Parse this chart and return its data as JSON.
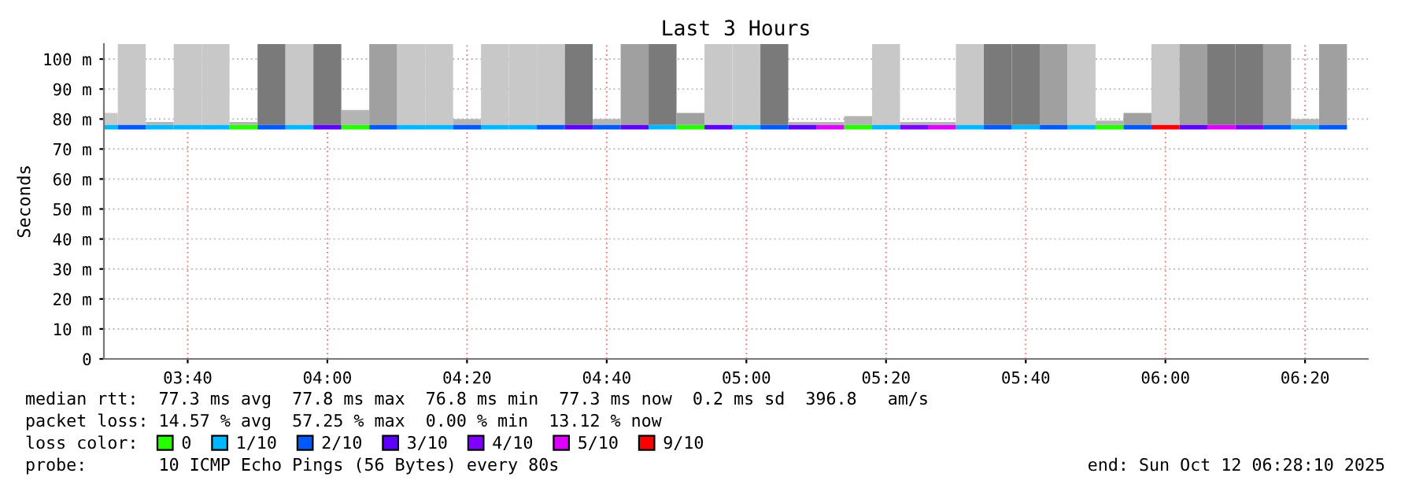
{
  "chart_data": {
    "type": "bar",
    "title": "Last 3 Hours",
    "ylabel": "Seconds",
    "legend_title": "loss color:",
    "xlim": [
      3.4667,
      6.4833
    ],
    "xticks": [
      {
        "value": 3.6667,
        "label": "03:40"
      },
      {
        "value": 4,
        "label": "04:00"
      },
      {
        "value": 4.3333,
        "label": "04:20"
      },
      {
        "value": 4.6667,
        "label": "04:40"
      },
      {
        "value": 5,
        "label": "05:00"
      },
      {
        "value": 5.3333,
        "label": "05:20"
      },
      {
        "value": 5.6667,
        "label": "05:40"
      },
      {
        "value": 6,
        "label": "06:00"
      },
      {
        "value": 6.3333,
        "label": "06:20"
      }
    ],
    "ylim": [
      0,
      105
    ],
    "yticks": [
      0,
      {
        "value": 10,
        "label": "10 m"
      },
      {
        "value": 20,
        "label": "20 m"
      },
      {
        "value": 30,
        "label": "30 m"
      },
      {
        "value": 40,
        "label": "40 m"
      },
      {
        "value": 50,
        "label": "50 m"
      },
      {
        "value": 60,
        "label": "60 m"
      },
      {
        "value": 70,
        "label": "70 m"
      },
      {
        "value": 80,
        "label": "80 m"
      },
      {
        "value": 90,
        "label": "90 m"
      },
      {
        "value": 100,
        "label": "100 m"
      }
    ],
    "grid": true,
    "legend": "bottom",
    "x": [
      3.4667,
      3.5333,
      3.6,
      3.6667,
      3.7333,
      3.8,
      3.8667,
      3.9333,
      4.0,
      4.0667,
      4.1333,
      4.2,
      4.2667,
      4.3333,
      4.4,
      4.4667,
      4.5333,
      4.6,
      4.6667,
      4.7333,
      4.8,
      4.8667,
      4.9333,
      5.0,
      5.0667,
      5.1333,
      5.2,
      5.2667,
      5.3333,
      5.4,
      5.4667,
      5.5333,
      5.6,
      5.6667,
      5.7333,
      5.8,
      5.8667,
      5.9333,
      6.0,
      6.0667,
      6.1333,
      6.2,
      6.2667,
      6.3333,
      6.4
    ],
    "base": [
      78,
      78,
      78,
      78,
      78,
      78,
      78,
      78,
      78,
      78,
      78,
      78,
      78,
      78,
      78,
      78,
      78,
      78,
      78,
      78,
      78,
      78,
      78,
      78,
      78,
      78,
      78,
      78,
      78,
      78,
      78,
      78,
      78,
      78,
      78,
      78,
      78,
      78,
      78,
      78,
      78,
      78,
      78,
      78,
      78
    ],
    "values": [
      4,
      27,
      1,
      27,
      27,
      1,
      27,
      27,
      27,
      5,
      27,
      27,
      27,
      2,
      27,
      27,
      27,
      27,
      2,
      27,
      27,
      4,
      27,
      27,
      27,
      1,
      1,
      3,
      27,
      1,
      1,
      27,
      27,
      27,
      27,
      27,
      1.5,
      4,
      27,
      27,
      27,
      27,
      27,
      2,
      27
    ],
    "colors": [
      "#c8c8c8",
      "#c8c8c8",
      "#b4b4b4",
      "#c8c8c8",
      "#c8c8c8",
      "#b4b4b4",
      "#7a7a7a",
      "#c8c8c8",
      "#7a7a7a",
      "#b4b4b4",
      "#a0a0a0",
      "#c8c8c8",
      "#c8c8c8",
      "#b4b4b4",
      "#c8c8c8",
      "#c8c8c8",
      "#c8c8c8",
      "#7a7a7a",
      "#b4b4b4",
      "#a0a0a0",
      "#7a7a7a",
      "#a0a0a0",
      "#c8c8c8",
      "#c8c8c8",
      "#7a7a7a",
      "#b4b4b4",
      "#b4b4b4",
      "#b4b4b4",
      "#c8c8c8",
      "#b4b4b4",
      "#b4b4b4",
      "#c8c8c8",
      "#7a7a7a",
      "#7a7a7a",
      "#a0a0a0",
      "#c8c8c8",
      "#b4b4b4",
      "#a0a0a0",
      "#c8c8c8",
      "#a0a0a0",
      "#7a7a7a",
      "#7a7a7a",
      "#a0a0a0",
      "#b4b4b4",
      "#a0a0a0"
    ],
    "series": [
      {
        "type": "bar",
        "name": "0",
        "color": "#26ff00",
        "values": [
          null,
          null,
          null,
          null,
          null,
          1.5,
          null,
          null,
          null,
          1.5,
          null,
          null,
          null,
          null,
          null,
          null,
          null,
          null,
          null,
          null,
          null,
          1.5,
          null,
          null,
          null,
          null,
          null,
          1.5,
          null,
          null,
          null,
          null,
          null,
          null,
          null,
          null,
          1.5,
          null,
          null,
          null,
          null,
          null,
          null,
          null,
          null
        ],
        "base": [
          null,
          null,
          null,
          null,
          null,
          76.5,
          null,
          null,
          null,
          76.5,
          null,
          null,
          null,
          null,
          null,
          null,
          null,
          null,
          null,
          null,
          null,
          76.5,
          null,
          null,
          null,
          null,
          null,
          76.5,
          null,
          null,
          null,
          null,
          null,
          null,
          null,
          null,
          76.5,
          null,
          null,
          null,
          null,
          null,
          null,
          null,
          null
        ]
      },
      {
        "type": "bar",
        "name": "1/10",
        "color": "#00b8ff",
        "values": [
          1.5,
          null,
          1.5,
          1.5,
          1.5,
          null,
          null,
          1.5,
          null,
          null,
          null,
          1.5,
          1.5,
          null,
          1.5,
          1.5,
          null,
          null,
          null,
          null,
          1.5,
          null,
          null,
          1.5,
          null,
          null,
          null,
          null,
          1.5,
          null,
          null,
          1.5,
          null,
          1.5,
          null,
          1.5,
          null,
          null,
          null,
          null,
          null,
          null,
          null,
          1.5,
          null
        ],
        "base": [
          76.5,
          null,
          76.5,
          76.5,
          76.5,
          null,
          null,
          76.5,
          null,
          null,
          null,
          76.5,
          76.5,
          null,
          76.5,
          76.5,
          null,
          null,
          null,
          null,
          76.5,
          null,
          null,
          76.5,
          null,
          null,
          null,
          null,
          76.5,
          null,
          null,
          76.5,
          null,
          76.5,
          null,
          76.5,
          null,
          null,
          null,
          null,
          null,
          null,
          null,
          76.5,
          null
        ]
      },
      {
        "type": "bar",
        "name": "2/10",
        "color": "#0059ff",
        "values": [
          null,
          1.5,
          null,
          null,
          null,
          null,
          1.5,
          null,
          null,
          null,
          1.5,
          null,
          null,
          1.5,
          null,
          null,
          1.5,
          null,
          1.5,
          null,
          null,
          null,
          null,
          null,
          1.5,
          null,
          null,
          null,
          null,
          null,
          null,
          null,
          1.5,
          null,
          1.5,
          null,
          null,
          1.5,
          null,
          null,
          null,
          null,
          1.5,
          null,
          1.5
        ],
        "base": [
          null,
          76.5,
          null,
          null,
          null,
          null,
          76.5,
          null,
          null,
          null,
          76.5,
          null,
          null,
          76.5,
          null,
          null,
          76.5,
          null,
          76.5,
          null,
          null,
          null,
          null,
          null,
          76.5,
          null,
          null,
          null,
          null,
          null,
          null,
          null,
          76.5,
          null,
          76.5,
          null,
          null,
          76.5,
          null,
          null,
          null,
          null,
          76.5,
          null,
          76.5
        ]
      },
      {
        "type": "bar",
        "name": "3/10",
        "color": "#5e00ff",
        "values": [
          null,
          null,
          null,
          null,
          null,
          null,
          null,
          null,
          1.5,
          null,
          null,
          null,
          null,
          null,
          null,
          null,
          null,
          1.5,
          null,
          1.5,
          null,
          null,
          1.5,
          null,
          null,
          1.5,
          null,
          null,
          null,
          null,
          null,
          null,
          null,
          null,
          null,
          null,
          null,
          null,
          null,
          1.5,
          null,
          null,
          null,
          null,
          null
        ],
        "base": [
          null,
          null,
          null,
          null,
          null,
          null,
          null,
          null,
          76.5,
          null,
          null,
          null,
          null,
          null,
          null,
          null,
          null,
          76.5,
          null,
          76.5,
          null,
          null,
          76.5,
          null,
          null,
          76.5,
          null,
          null,
          null,
          null,
          null,
          null,
          null,
          null,
          null,
          null,
          null,
          null,
          null,
          76.5,
          null,
          null,
          null,
          null,
          null
        ]
      },
      {
        "type": "bar",
        "name": "4/10",
        "color": "#7e00ff",
        "values": [
          null,
          null,
          null,
          null,
          null,
          null,
          null,
          null,
          null,
          null,
          null,
          null,
          null,
          null,
          null,
          null,
          null,
          null,
          null,
          null,
          null,
          null,
          null,
          null,
          null,
          null,
          null,
          null,
          null,
          1.5,
          null,
          null,
          null,
          null,
          null,
          null,
          null,
          null,
          null,
          null,
          null,
          1.5,
          null,
          null,
          null
        ],
        "base": [
          null,
          null,
          null,
          null,
          null,
          null,
          null,
          null,
          null,
          null,
          null,
          null,
          null,
          null,
          null,
          null,
          null,
          null,
          null,
          null,
          null,
          null,
          null,
          null,
          null,
          null,
          null,
          null,
          null,
          76.5,
          null,
          null,
          null,
          null,
          null,
          null,
          null,
          null,
          null,
          null,
          null,
          76.5,
          null,
          null,
          null
        ]
      },
      {
        "type": "bar",
        "name": "5/10",
        "color": "#dd00ff",
        "values": [
          null,
          null,
          null,
          null,
          null,
          null,
          null,
          null,
          null,
          null,
          null,
          null,
          null,
          null,
          null,
          null,
          null,
          null,
          null,
          null,
          null,
          null,
          null,
          null,
          null,
          null,
          1.5,
          null,
          null,
          null,
          1.5,
          null,
          null,
          null,
          null,
          null,
          null,
          null,
          null,
          null,
          1.5,
          null,
          null,
          null,
          null
        ],
        "base": [
          null,
          null,
          null,
          null,
          null,
          null,
          null,
          null,
          null,
          null,
          null,
          null,
          null,
          null,
          null,
          null,
          null,
          null,
          null,
          null,
          null,
          null,
          null,
          null,
          null,
          null,
          76.5,
          null,
          null,
          null,
          76.5,
          null,
          null,
          null,
          null,
          null,
          null,
          null,
          null,
          null,
          76.5,
          null,
          null,
          null,
          null
        ]
      },
      {
        "type": "bar",
        "name": "9/10",
        "color": "#ff0000",
        "values": [
          null,
          null,
          null,
          null,
          null,
          null,
          null,
          null,
          null,
          null,
          null,
          null,
          null,
          null,
          null,
          null,
          null,
          null,
          null,
          null,
          null,
          null,
          null,
          null,
          null,
          null,
          null,
          null,
          null,
          null,
          null,
          null,
          null,
          null,
          null,
          null,
          null,
          null,
          1.5,
          null,
          null,
          null,
          null,
          null,
          null
        ],
        "base": [
          null,
          null,
          null,
          null,
          null,
          null,
          null,
          null,
          null,
          null,
          null,
          null,
          null,
          null,
          null,
          null,
          null,
          null,
          null,
          null,
          null,
          null,
          null,
          null,
          null,
          null,
          null,
          null,
          null,
          null,
          null,
          null,
          null,
          null,
          null,
          null,
          null,
          null,
          76.5,
          null,
          null,
          null,
          null,
          null,
          null
        ]
      }
    ],
    "annotations": [
      "median rtt:  77.3 ms avg  77.8 ms max  76.8 ms min  77.3 ms now  0.2 ms sd  396.8   am/s",
      "packet loss: 14.57 % avg  57.25 % max  0.00 % min  13.12 % now",
      "probe:       10 ICMP Echo Pings (56 Bytes) every 80s",
      "end: Sun Oct 12 06:28:10 2025"
    ]
  }
}
